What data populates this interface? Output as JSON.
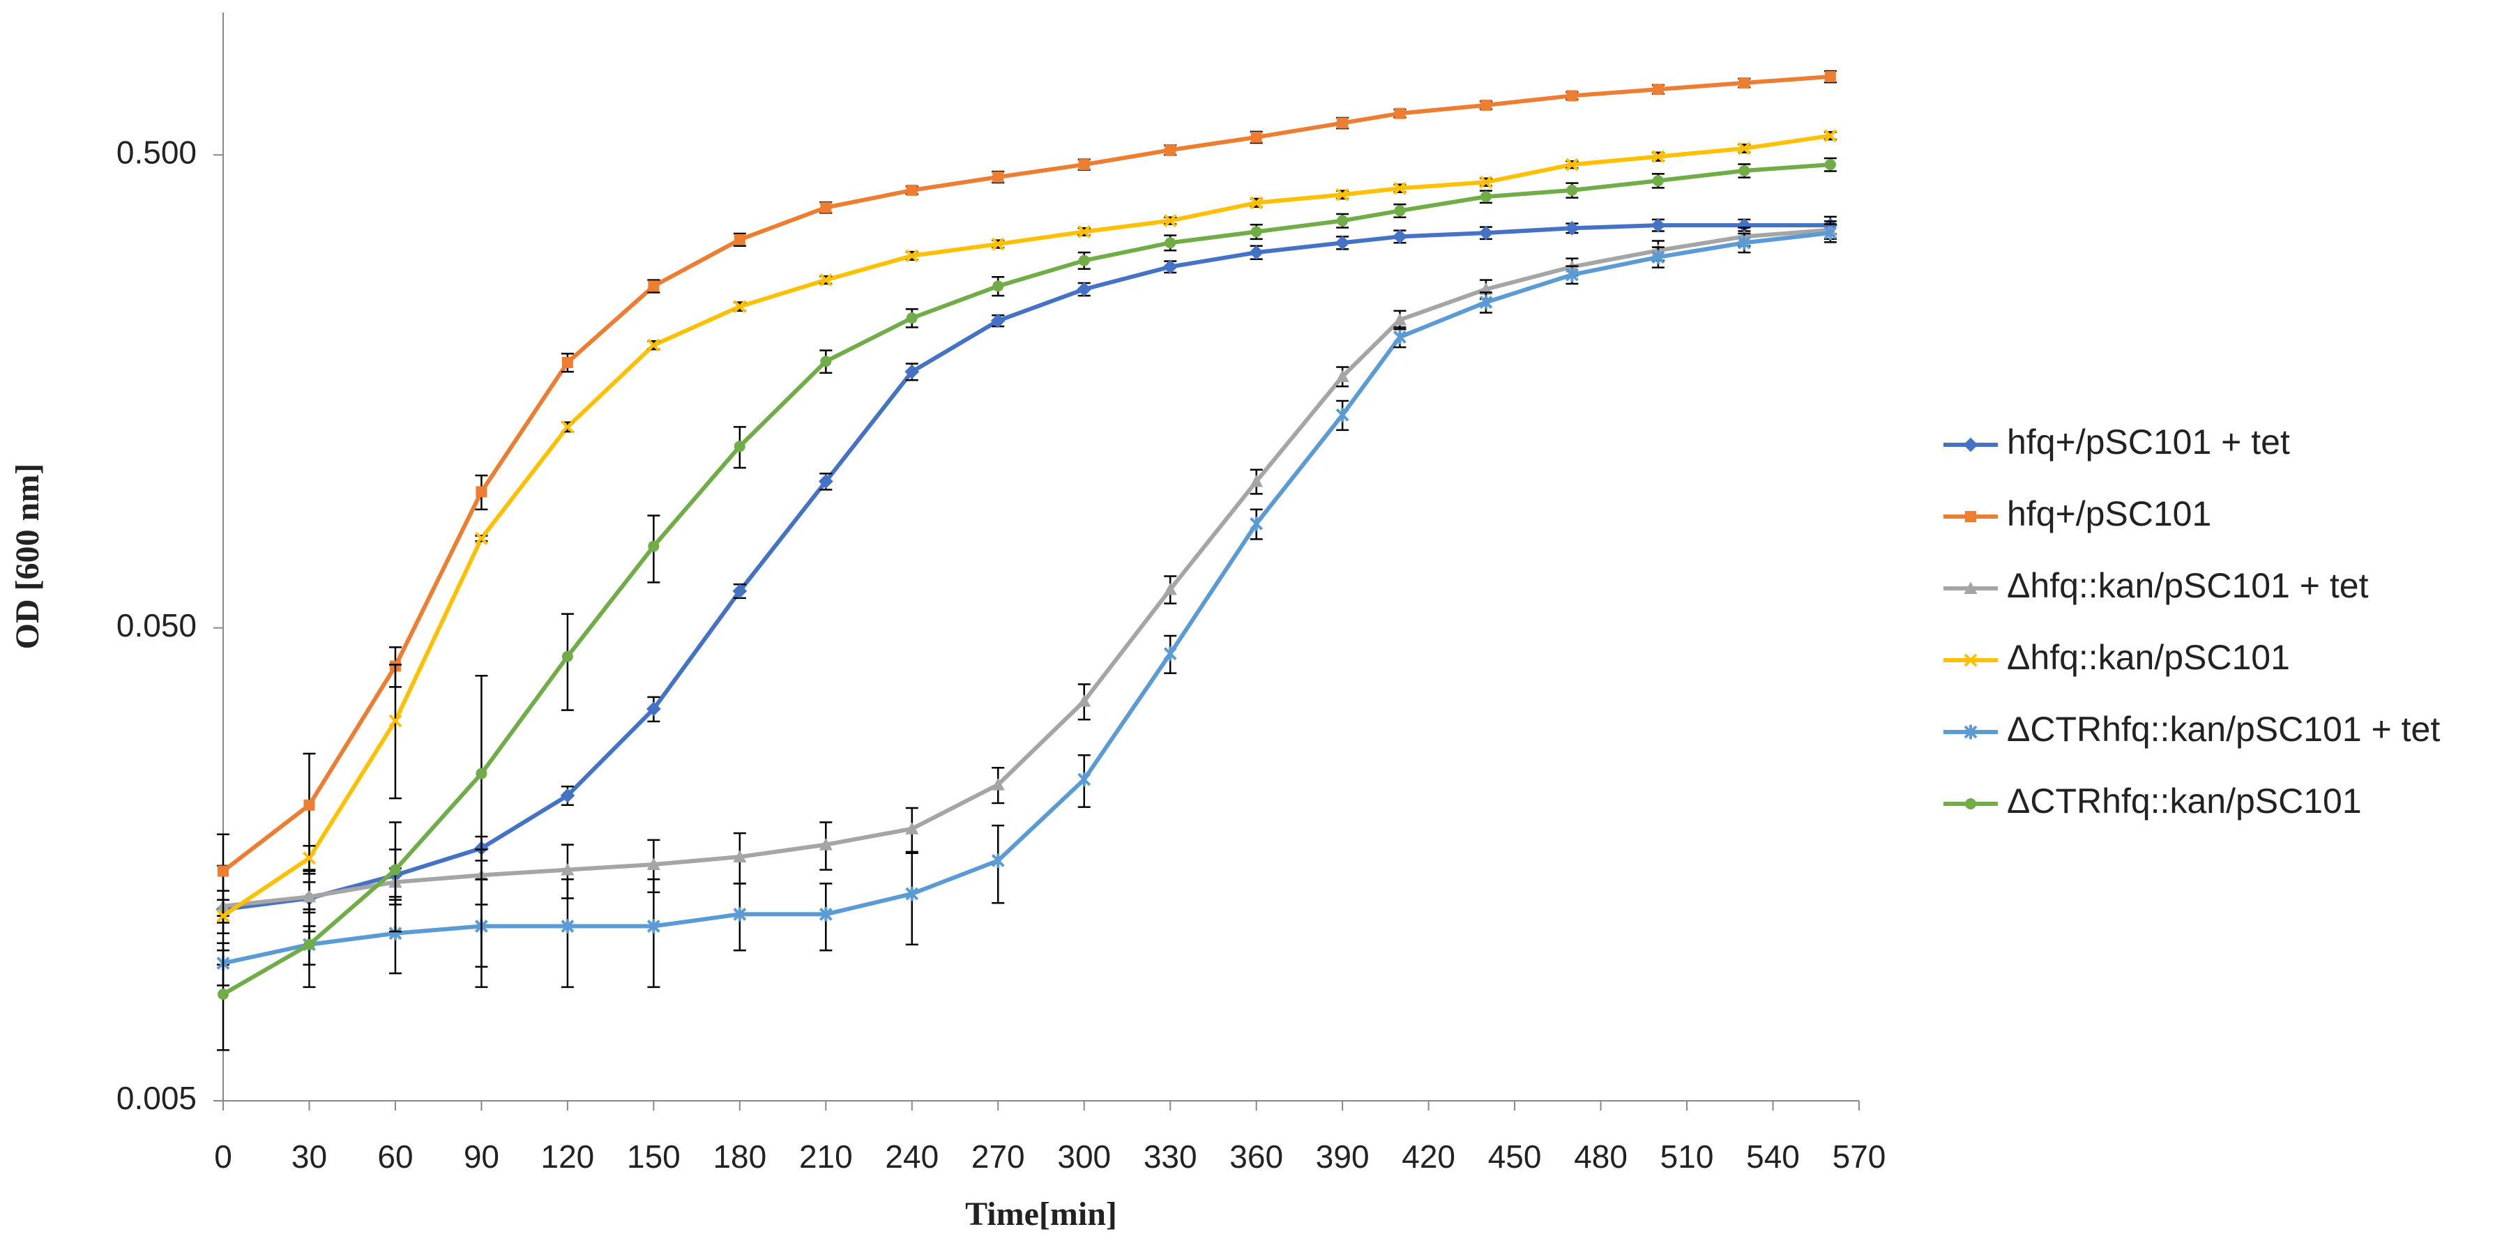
{
  "chart_data": {
    "type": "line",
    "x_label": "Time[min]",
    "y_label": "OD [600 nm]",
    "log_y": true,
    "legend": "right",
    "xlim": [
      0,
      570
    ],
    "xticks": [
      0,
      30,
      60,
      90,
      120,
      150,
      180,
      210,
      240,
      270,
      300,
      330,
      360,
      390,
      420,
      450,
      480,
      510,
      540,
      570
    ],
    "ylim": [
      0.005,
      1.0
    ],
    "yticks": [
      {
        "value": 0.005,
        "label": "0.005"
      },
      {
        "value": 0.05,
        "label": "0.050"
      },
      {
        "value": 0.5,
        "label": "0.500"
      }
    ],
    "x": [
      0,
      30,
      60,
      90,
      120,
      150,
      180,
      210,
      240,
      270,
      300,
      330,
      360,
      390,
      410,
      440,
      470,
      500,
      530,
      560
    ],
    "series": [
      {
        "name": "hfq+/pSC101 + tet",
        "color": "#4472c4",
        "marker": "diamond",
        "values": [
          0.0127,
          0.0134,
          0.015,
          0.0171,
          0.0221,
          0.0337,
          0.0598,
          0.102,
          0.174,
          0.223,
          0.26,
          0.29,
          0.311,
          0.326,
          0.336,
          0.342,
          0.35,
          0.355,
          0.355,
          0.355
        ],
        "errors": [
          0.003,
          0.002,
          0.002,
          0.001,
          0.001,
          0.002,
          0.002,
          0.004,
          0.007,
          0.006,
          0.008,
          0.008,
          0.01,
          0.01,
          0.01,
          0.01,
          0.008,
          0.01,
          0.01,
          0.015
        ]
      },
      {
        "name": "hfq+/pSC101",
        "color": "#ed7d31",
        "marker": "square",
        "values": [
          0.0153,
          0.0211,
          0.0415,
          0.097,
          0.182,
          0.264,
          0.331,
          0.387,
          0.421,
          0.449,
          0.477,
          0.512,
          0.545,
          0.584,
          0.612,
          0.637,
          0.667,
          0.688,
          0.71,
          0.732
        ],
        "errors": [
          0.003,
          0.006,
          0.004,
          0.008,
          0.008,
          0.008,
          0.01,
          0.01,
          0.008,
          0.012,
          0.012,
          0.012,
          0.015,
          0.015,
          0.012,
          0.012,
          0.012,
          0.015,
          0.015,
          0.02
        ]
      },
      {
        "name": "Δhfq::kan/pSC101 + tet",
        "color": "#a5a5a5",
        "marker": "triangle",
        "values": [
          0.0129,
          0.0135,
          0.0145,
          0.015,
          0.0154,
          0.0158,
          0.0164,
          0.0174,
          0.0188,
          0.0233,
          0.035,
          0.0603,
          0.102,
          0.17,
          0.224,
          0.26,
          0.29,
          0.314,
          0.336,
          0.347
        ],
        "errors": [
          0.001,
          0.001,
          0.001,
          0.002,
          0.002,
          0.002,
          0.002,
          0.002,
          0.002,
          0.002,
          0.003,
          0.004,
          0.006,
          0.008,
          0.01,
          0.012,
          0.012,
          0.015,
          0.015,
          0.015
        ]
      },
      {
        "name": "Δhfq::kan/pSC101",
        "color": "#ffc000",
        "marker": "x",
        "values": [
          0.0123,
          0.0163,
          0.0318,
          0.0773,
          0.133,
          0.198,
          0.239,
          0.272,
          0.306,
          0.324,
          0.344,
          0.363,
          0.396,
          0.412,
          0.425,
          0.438,
          0.477,
          0.496,
          0.516,
          0.549
        ],
        "errors": [
          0.001,
          0.001,
          0.01,
          0.001,
          0.003,
          0.004,
          0.005,
          0.005,
          0.006,
          0.006,
          0.006,
          0.006,
          0.008,
          0.008,
          0.008,
          0.008,
          0.008,
          0.01,
          0.01,
          0.01
        ]
      },
      {
        "name": "ΔCTRhfq::kan/pSC101 + tet",
        "color": "#5b9bd5",
        "marker": "star",
        "values": [
          0.00977,
          0.0107,
          0.0113,
          0.0117,
          0.0117,
          0.0117,
          0.0124,
          0.0124,
          0.0137,
          0.0161,
          0.0239,
          0.0441,
          0.083,
          0.141,
          0.206,
          0.244,
          0.279,
          0.304,
          0.326,
          0.342
        ],
        "errors": [
          0.001,
          0.002,
          0.002,
          0.003,
          0.003,
          0.003,
          0.002,
          0.002,
          0.003,
          0.003,
          0.003,
          0.004,
          0.006,
          0.01,
          0.01,
          0.012,
          0.012,
          0.015,
          0.015,
          0.015
        ]
      },
      {
        "name": "ΔCTRhfq::kan/pSC101",
        "color": "#70ad47",
        "marker": "circle",
        "values": [
          0.0084,
          0.0107,
          0.0154,
          0.0246,
          0.0435,
          0.0744,
          0.121,
          0.183,
          0.226,
          0.264,
          0.299,
          0.326,
          0.344,
          0.363,
          0.381,
          0.408,
          0.421,
          0.441,
          0.463,
          0.477
        ],
        "errors": [
          0.002,
          0.001,
          0.004,
          0.015,
          0.01,
          0.012,
          0.012,
          0.01,
          0.01,
          0.012,
          0.012,
          0.012,
          0.012,
          0.012,
          0.012,
          0.012,
          0.015,
          0.015,
          0.015,
          0.015
        ]
      }
    ]
  }
}
